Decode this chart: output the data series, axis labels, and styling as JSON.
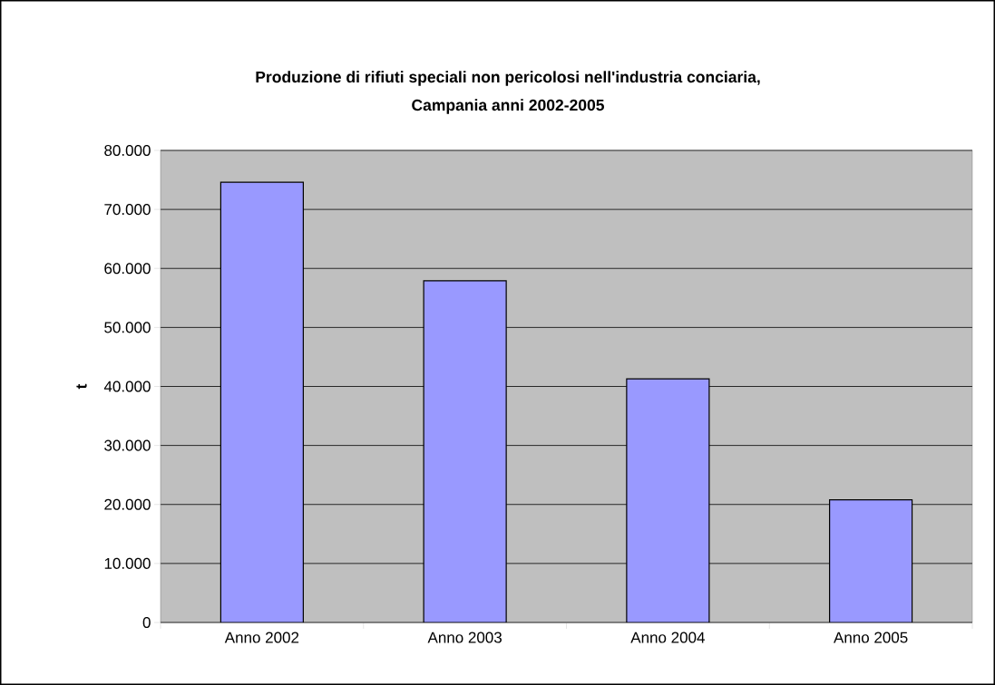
{
  "chart_data": {
    "type": "bar",
    "title": "Produzione di rifiuti speciali non pericolosi nell'industria conciaria,\nCampania anni 2002-2005",
    "ylabel": "t",
    "categories": [
      "Anno 2002",
      "Anno 2003",
      "Anno 2004",
      "Anno 2005"
    ],
    "values": [
      74600,
      57900,
      41300,
      20800
    ],
    "color": "#9999ff",
    "ylim": [
      0,
      80000
    ],
    "yticks": [
      0,
      {
        "value": 10000,
        "label": "10.000"
      },
      {
        "value": 20000,
        "label": "20.000"
      },
      {
        "value": 30000,
        "label": "30.000"
      },
      {
        "value": 40000,
        "label": "40.000"
      },
      {
        "value": 50000,
        "label": "50.000"
      },
      {
        "value": 60000,
        "label": "60.000"
      },
      {
        "value": 70000,
        "label": "70.000"
      },
      {
        "value": 80000,
        "label": "80.000"
      }
    ],
    "grid": "y"
  }
}
